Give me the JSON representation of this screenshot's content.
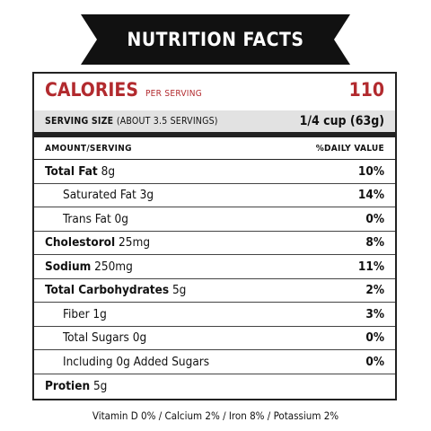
{
  "banner": {
    "title": "NUTRITION FACTS",
    "color": "#111111"
  },
  "calories": {
    "label": "CALORIES",
    "sub": "PER SERVING",
    "value": "110",
    "color": "#b22a2e"
  },
  "serving": {
    "label": "SERVING SIZE",
    "note": "(ABOUT 3.5 SERVINGS)",
    "value": "1/4 cup (63g)"
  },
  "header": {
    "left": "AMOUNT/SERVING",
    "right": "%DAILY VALUE"
  },
  "rows": [
    {
      "name": "Total Fat",
      "amount": "8g",
      "pct": "10%"
    },
    {
      "name": "Saturated Fat 3g",
      "amount": "",
      "pct": "14%"
    },
    {
      "name": "Trans Fat 0g",
      "amount": "",
      "pct": "0%"
    },
    {
      "name": "Cholestorol",
      "amount": "25mg",
      "pct": "8%"
    },
    {
      "name": "Sodium",
      "amount": "250mg",
      "pct": "11%"
    },
    {
      "name": "Total Carbohydrates",
      "amount": "5g",
      "pct": "2%"
    },
    {
      "name": "Fiber 1g",
      "amount": "",
      "pct": "3%"
    },
    {
      "name": "Total Sugars 0g",
      "amount": "",
      "pct": "0%"
    },
    {
      "name": "Including 0g Added Sugars",
      "amount": "",
      "pct": "0%"
    },
    {
      "name": "Protien",
      "amount": "5g",
      "pct": ""
    }
  ],
  "footer": {
    "text": "Vitamin D 0%  /  Calcium 2%  /  Iron 8%  /  Potassium 2%"
  }
}
